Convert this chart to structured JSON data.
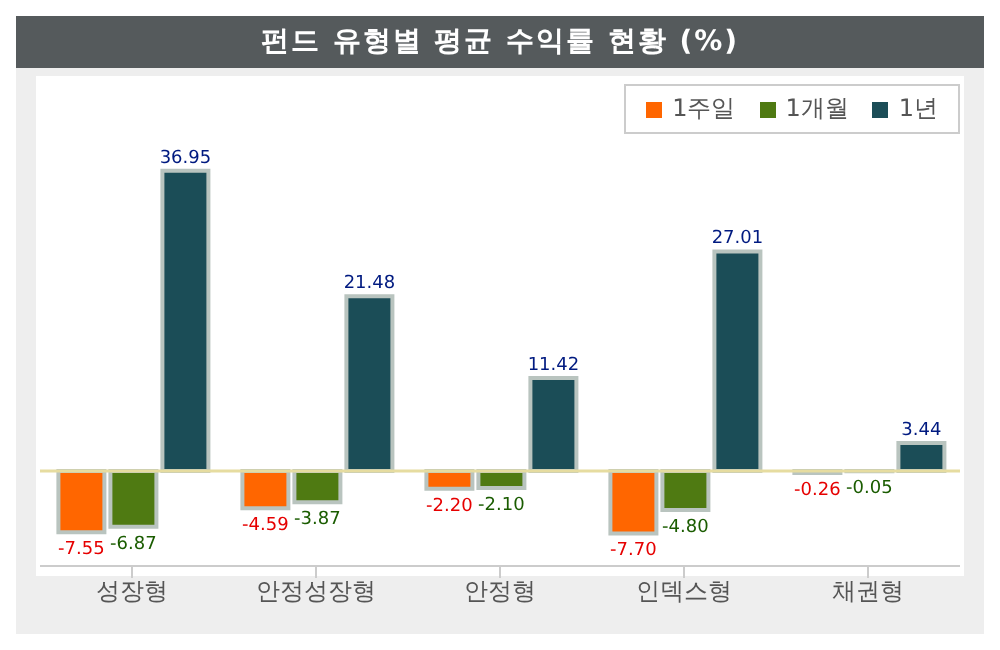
{
  "chart_data": {
    "type": "bar",
    "title": "펀드 유형별 평균 수익률 현황 (%)",
    "categories": [
      "성장형",
      "안정성장형",
      "안정형",
      "인덱스형",
      "채권형"
    ],
    "series": [
      {
        "name": "1주일",
        "color": "#ff6600",
        "values": [
          -7.55,
          -4.59,
          -2.2,
          -7.7,
          -0.26
        ],
        "value_labels": [
          "-7.55",
          "-4.59",
          "-2.20",
          "-7.70",
          "-0.26"
        ]
      },
      {
        "name": "1개월",
        "color": "#4f7a12",
        "values": [
          -6.87,
          -3.87,
          -2.1,
          -4.8,
          -0.05
        ],
        "value_labels": [
          "-6.87",
          "-3.87",
          "-2.10",
          "-4.80",
          "-0.05"
        ]
      },
      {
        "name": "1년",
        "color": "#1b4d57",
        "values": [
          36.95,
          21.48,
          11.42,
          27.01,
          3.44
        ],
        "value_labels": [
          "36.95",
          "21.48",
          "11.42",
          "27.01",
          "3.44"
        ]
      }
    ],
    "ref_lines": [
      {
        "axis": "y",
        "value": 0,
        "color": "#e6dca0"
      }
    ],
    "legend": "top right"
  }
}
